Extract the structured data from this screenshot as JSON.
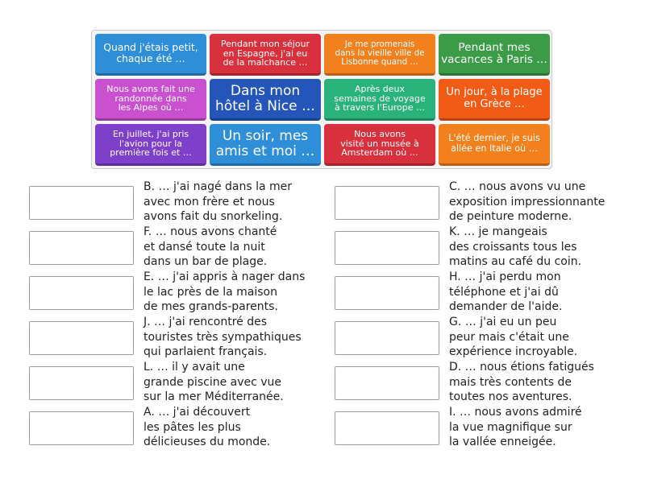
{
  "tiles": [
    {
      "lines": [
        "Quand j'étais petit,",
        "chaque été …"
      ],
      "color": "#2e8fd8"
    },
    {
      "lines": [
        "Pendant mon séjour",
        "en Espagne, j'ai eu",
        "de la malchance …"
      ],
      "color": "#d8303d"
    },
    {
      "lines": [
        "Je me promenais",
        "dans la vieille ville de",
        "Lisbonne quand …"
      ],
      "color": "#f2801c"
    },
    {
      "lines": [
        "Pendant mes",
        "vacances à Paris …"
      ],
      "color": "#3b9b46"
    },
    {
      "lines": [
        "Nous avons fait une",
        "randonnée dans",
        "les Alpes où …"
      ],
      "color": "#c950cf"
    },
    {
      "lines": [
        "Dans mon",
        "hôtel à Nice …"
      ],
      "color": "#2456b9"
    },
    {
      "lines": [
        "Après deux",
        "semaines de voyage",
        "à travers l'Europe …"
      ],
      "color": "#2ab27b"
    },
    {
      "lines": [
        "Un jour, à la plage",
        "en Grèce …"
      ],
      "color": "#f15b16"
    },
    {
      "lines": [
        "En juillet, j'ai pris",
        "l'avion pour la",
        "première fois et …"
      ],
      "color": "#7e3fca"
    },
    {
      "lines": [
        "Un soir, mes",
        "amis et moi …"
      ],
      "color": "#2e8fd8"
    },
    {
      "lines": [
        "Nous avons",
        "visité un musée à",
        "Amsterdam où …"
      ],
      "color": "#d8303d"
    },
    {
      "lines": [
        "L'été dernier, je suis",
        "allée en Italie où …"
      ],
      "color": "#f2801c"
    }
  ],
  "answers": [
    {
      "lines": [
        "B. … j'ai nagé dans la mer",
        "avec mon frère et nous",
        "avons fait du snorkeling."
      ]
    },
    {
      "lines": [
        "F. … nous avons chanté",
        "et dansé toute la nuit",
        "dans un bar de plage."
      ]
    },
    {
      "lines": [
        "E. … j'ai appris à nager dans",
        "le lac près de la maison",
        "de mes grands-parents."
      ]
    },
    {
      "lines": [
        "J. … j'ai rencontré des",
        "touristes très sympathiques",
        "qui parlaient français."
      ]
    },
    {
      "lines": [
        "L. … il y avait une",
        "grande piscine avec vue",
        "sur la mer Méditerranée."
      ]
    },
    {
      "lines": [
        "A. … j'ai découvert",
        "les pâtes les plus",
        "délicieuses du monde."
      ]
    },
    {
      "lines": [
        "C. … nous avons vu une",
        "exposition impressionnante",
        "de peinture moderne."
      ]
    },
    {
      "lines": [
        "K. … je mangeais",
        "des croissants tous les",
        "matins au café du coin."
      ]
    },
    {
      "lines": [
        "H. … j'ai perdu mon",
        "téléphone et j'ai dû",
        "demander de l'aide."
      ]
    },
    {
      "lines": [
        "G. … j'ai eu un peu",
        "peur mais c'était une",
        "expérience incroyable."
      ]
    },
    {
      "lines": [
        "D. … nous étions fatigués",
        "mais très contents de",
        "toutes nos aventures."
      ]
    },
    {
      "lines": [
        "I. … nous avons admiré",
        "la vue magnifique sur",
        "la vallée enneigée."
      ]
    }
  ]
}
